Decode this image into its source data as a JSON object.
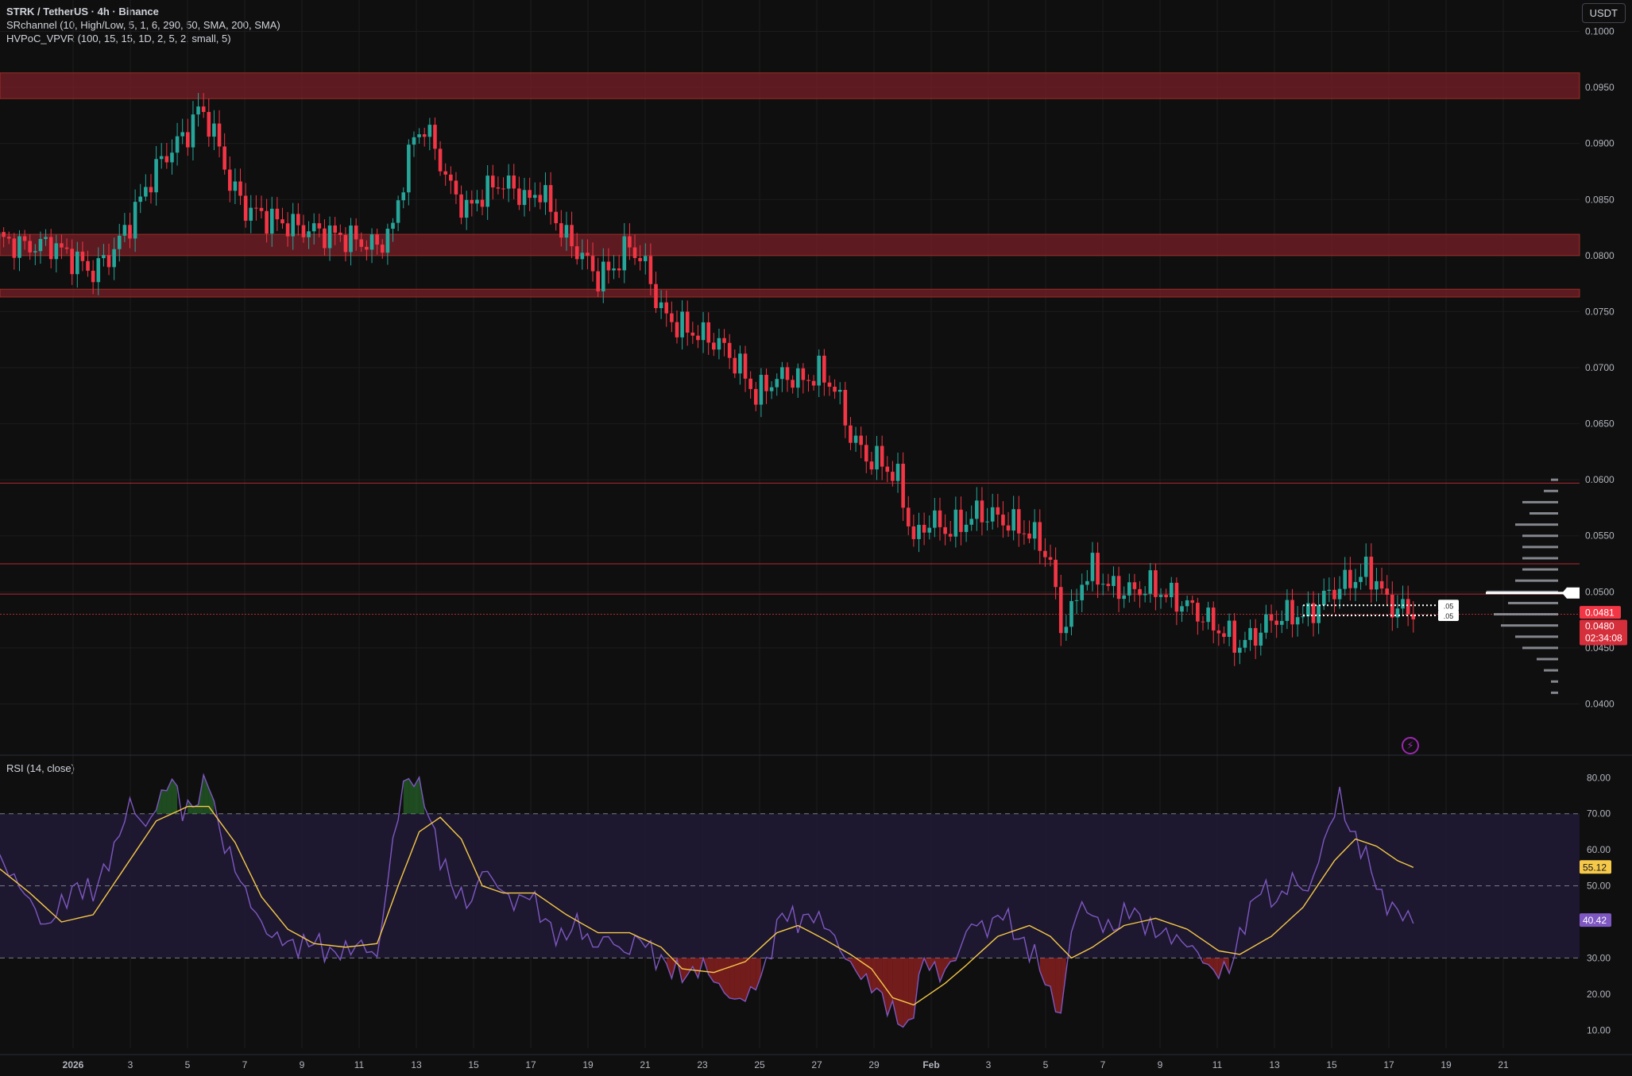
{
  "header": {
    "symbol_line": "STRK / TetherUS · 4h · Binance",
    "indicator1": "SRchannel (10, High/Low, 5, 1, 6, 290, 50, SMA, 200, SMA)",
    "indicator2": "HVPoC_VPVR (100, 15, 15, 1D, 2, 5, 2, small, 5)",
    "currency": "USDT"
  },
  "rsi": {
    "legend": "RSI (14, close)",
    "value_label": "40.42",
    "ma_label": "55.12"
  },
  "price_labels": {
    "last_price": "0.0481",
    "price2": "0.0480",
    "countdown": "02:34:08",
    "hvpoc_label1": ".05",
    "hvpoc_label2": ".05"
  },
  "colors": {
    "up": "#26a69a",
    "down": "#f23645",
    "sr_zone": "#7a1f28",
    "rsi_line": "#7e57c2",
    "rsi_ma": "#f7c948",
    "rsi_band": "#1f1a33",
    "hvpoc_bars": "#a0a4ad",
    "background": "#0f0f0f"
  },
  "chart_data": [
    {
      "type": "candlestick",
      "title": "STRK / TetherUS · 4h · Binance",
      "x_ticks": [
        "2026",
        "3",
        "5",
        "7",
        "9",
        "11",
        "13",
        "15",
        "17",
        "19",
        "21",
        "23",
        "25",
        "27",
        "29",
        "Feb",
        "3",
        "5",
        "7",
        "9",
        "11",
        "13",
        "15",
        "17",
        "19",
        "21"
      ],
      "y_ticks": [
        "0.1000",
        "0.0950",
        "0.0900",
        "0.0850",
        "0.0800",
        "0.0750",
        "0.0700",
        "0.0650",
        "0.0600",
        "0.0550",
        "0.0500",
        "0.0450",
        "0.0400"
      ],
      "ylim": [
        0.0355,
        0.1028
      ],
      "close_path": [
        [
          0,
          0.0815
        ],
        [
          5,
          0.0808
        ],
        [
          10,
          0.081
        ],
        [
          15,
          0.0795
        ],
        [
          18,
          0.0785
        ],
        [
          22,
          0.0805
        ],
        [
          25,
          0.083
        ],
        [
          28,
          0.086
        ],
        [
          31,
          0.0885
        ],
        [
          34,
          0.09
        ],
        [
          36,
          0.091
        ],
        [
          38,
          0.093
        ],
        [
          40,
          0.092
        ],
        [
          42,
          0.0895
        ],
        [
          44,
          0.0865
        ],
        [
          47,
          0.0842
        ],
        [
          52,
          0.0832
        ],
        [
          57,
          0.0825
        ],
        [
          62,
          0.082
        ],
        [
          67,
          0.0815
        ],
        [
          72,
          0.0808
        ],
        [
          75,
          0.0825
        ],
        [
          77,
          0.087
        ],
        [
          79,
          0.0905
        ],
        [
          81,
          0.0915
        ],
        [
          83,
          0.0895
        ],
        [
          86,
          0.086
        ],
        [
          89,
          0.084
        ],
        [
          92,
          0.0855
        ],
        [
          95,
          0.0865
        ],
        [
          98,
          0.086
        ],
        [
          101,
          0.0848
        ],
        [
          103,
          0.086
        ],
        [
          105,
          0.084
        ],
        [
          108,
          0.0815
        ],
        [
          111,
          0.08
        ],
        [
          114,
          0.078
        ],
        [
          117,
          0.079
        ],
        [
          120,
          0.081
        ],
        [
          123,
          0.079
        ],
        [
          126,
          0.075
        ],
        [
          129,
          0.0738
        ],
        [
          133,
          0.073
        ],
        [
          137,
          0.0722
        ],
        [
          141,
          0.07
        ],
        [
          144,
          0.0675
        ],
        [
          147,
          0.0688
        ],
        [
          150,
          0.0693
        ],
        [
          153,
          0.0688
        ],
        [
          156,
          0.0696
        ],
        [
          159,
          0.0682
        ],
        [
          162,
          0.064
        ],
        [
          165,
          0.062
        ],
        [
          168,
          0.0615
        ],
        [
          171,
          0.06
        ],
        [
          174,
          0.0545
        ],
        [
          177,
          0.0565
        ],
        [
          180,
          0.0555
        ],
        [
          183,
          0.056
        ],
        [
          186,
          0.057
        ],
        [
          189,
          0.0568
        ],
        [
          192,
          0.0562
        ],
        [
          195,
          0.0555
        ],
        [
          198,
          0.0545
        ],
        [
          200,
          0.0525
        ],
        [
          202,
          0.047
        ],
        [
          204,
          0.048
        ],
        [
          206,
          0.051
        ],
        [
          208,
          0.052
        ],
        [
          211,
          0.0505
        ],
        [
          215,
          0.05
        ],
        [
          219,
          0.0505
        ],
        [
          223,
          0.0495
        ],
        [
          227,
          0.0485
        ],
        [
          231,
          0.047
        ],
        [
          234,
          0.046
        ],
        [
          236,
          0.0452
        ],
        [
          239,
          0.0462
        ],
        [
          242,
          0.0475
        ],
        [
          246,
          0.048
        ],
        [
          249,
          0.0478
        ],
        [
          252,
          0.0495
        ],
        [
          255,
          0.0505
        ],
        [
          258,
          0.0512
        ],
        [
          260,
          0.0518
        ],
        [
          262,
          0.051
        ],
        [
          264,
          0.049
        ],
        [
          267,
          0.0484
        ],
        [
          269,
          0.0481
        ]
      ],
      "sr_zones": [
        [
          0.094,
          0.0963
        ],
        [
          0.08,
          0.0819
        ],
        [
          0.0763,
          0.077
        ]
      ],
      "sr_lines": [
        0.0597,
        0.0525,
        0.0498,
        0.048
      ],
      "hvpoc_levels": [
        0.041,
        0.042,
        0.043,
        0.044,
        0.045,
        0.046,
        0.047,
        0.048,
        0.049,
        0.05,
        0.051,
        0.052,
        0.053,
        0.054,
        0.055,
        0.056,
        0.057,
        0.058,
        0.059,
        0.06
      ],
      "hvpoc_weights": [
        1,
        1,
        2,
        3,
        5,
        6,
        8,
        9,
        7,
        10,
        6,
        5,
        5,
        5,
        5,
        6,
        4,
        5,
        2,
        1
      ]
    },
    {
      "type": "line",
      "title": "RSI (14, close)",
      "y_ticks": [
        "80.00",
        "70.00",
        "60.00",
        "50.00",
        "40.00",
        "30.00",
        "20.00",
        "10.00"
      ],
      "ylim": [
        5,
        86
      ],
      "bands": [
        30,
        50,
        70
      ],
      "series": [
        {
          "values": [
            [
              0,
              58
            ],
            [
              3,
              52
            ],
            [
              6,
              46
            ],
            [
              9,
              38
            ],
            [
              12,
              45
            ],
            [
              15,
              50
            ],
            [
              18,
              48
            ],
            [
              22,
              60
            ],
            [
              25,
              73
            ],
            [
              28,
              66
            ],
            [
              31,
              75
            ],
            [
              33,
              80
            ],
            [
              35,
              71
            ],
            [
              37,
              72
            ],
            [
              40,
              80
            ],
            [
              42,
              65
            ],
            [
              45,
              55
            ],
            [
              48,
              45
            ],
            [
              51,
              37
            ],
            [
              54,
              35
            ],
            [
              57,
              33
            ],
            [
              60,
              35
            ],
            [
              63,
              31
            ],
            [
              66,
              32
            ],
            [
              69,
              34
            ],
            [
              72,
              30
            ],
            [
              75,
              62
            ],
            [
              77,
              78
            ],
            [
              79,
              80
            ],
            [
              81,
              74
            ],
            [
              84,
              58
            ],
            [
              87,
              48
            ],
            [
              90,
              45
            ],
            [
              92,
              55
            ],
            [
              95,
              50
            ],
            [
              98,
              45
            ],
            [
              101,
              48
            ],
            [
              104,
              40
            ],
            [
              107,
              35
            ],
            [
              110,
              40
            ],
            [
              113,
              33
            ],
            [
              116,
              36
            ],
            [
              119,
              31
            ],
            [
              122,
              36
            ],
            [
              125,
              30
            ],
            [
              128,
              27
            ],
            [
              131,
              25
            ],
            [
              134,
              28
            ],
            [
              137,
              22
            ],
            [
              140,
              18
            ],
            [
              143,
              20
            ],
            [
              146,
              28
            ],
            [
              149,
              43
            ],
            [
              152,
              40
            ],
            [
              155,
              42
            ],
            [
              158,
              38
            ],
            [
              161,
              30
            ],
            [
              164,
              25
            ],
            [
              167,
              21
            ],
            [
              170,
              15
            ],
            [
              173,
              10
            ],
            [
              176,
              30
            ],
            [
              179,
              25
            ],
            [
              182,
              30
            ],
            [
              185,
              40
            ],
            [
              188,
              38
            ],
            [
              191,
              43
            ],
            [
              194,
              35
            ],
            [
              197,
              31
            ],
            [
              200,
              20
            ],
            [
              202,
              14
            ],
            [
              204,
              38
            ],
            [
              206,
              45
            ],
            [
              209,
              40
            ],
            [
              212,
              38
            ],
            [
              215,
              44
            ],
            [
              219,
              38
            ],
            [
              223,
              36
            ],
            [
              227,
              33
            ],
            [
              231,
              26
            ],
            [
              234,
              27
            ],
            [
              237,
              40
            ],
            [
              240,
              50
            ],
            [
              243,
              45
            ],
            [
              246,
              52
            ],
            [
              249,
              48
            ],
            [
              252,
              62
            ],
            [
              255,
              75
            ],
            [
              257,
              65
            ],
            [
              259,
              61
            ],
            [
              261,
              55
            ],
            [
              263,
              46
            ],
            [
              266,
              43
            ],
            [
              269,
              40.42
            ]
          ]
        },
        {
          "values": [
            [
              0,
              55
            ],
            [
              6,
              48
            ],
            [
              12,
              40
            ],
            [
              18,
              42
            ],
            [
              24,
              55
            ],
            [
              30,
              68
            ],
            [
              36,
              72
            ],
            [
              40,
              72
            ],
            [
              45,
              62
            ],
            [
              50,
              47
            ],
            [
              55,
              38
            ],
            [
              60,
              34
            ],
            [
              66,
              33
            ],
            [
              72,
              34
            ],
            [
              76,
              50
            ],
            [
              80,
              65
            ],
            [
              84,
              69
            ],
            [
              88,
              63
            ],
            [
              92,
              50
            ],
            [
              96,
              48
            ],
            [
              102,
              48
            ],
            [
              108,
              42
            ],
            [
              114,
              37
            ],
            [
              120,
              37
            ],
            [
              126,
              33
            ],
            [
              130,
              27
            ],
            [
              136,
              26
            ],
            [
              142,
              29
            ],
            [
              148,
              37
            ],
            [
              152,
              39
            ],
            [
              156,
              36
            ],
            [
              162,
              31
            ],
            [
              166,
              27
            ],
            [
              170,
              19
            ],
            [
              174,
              17
            ],
            [
              180,
              23
            ],
            [
              184,
              28
            ],
            [
              190,
              36
            ],
            [
              196,
              39
            ],
            [
              200,
              36
            ],
            [
              204,
              30
            ],
            [
              208,
              33
            ],
            [
              214,
              39
            ],
            [
              220,
              41
            ],
            [
              226,
              38
            ],
            [
              232,
              32
            ],
            [
              236,
              31
            ],
            [
              242,
              36
            ],
            [
              248,
              44
            ],
            [
              254,
              57
            ],
            [
              258,
              63
            ],
            [
              262,
              61
            ],
            [
              266,
              57
            ],
            [
              269,
              55.12
            ]
          ]
        }
      ]
    }
  ]
}
